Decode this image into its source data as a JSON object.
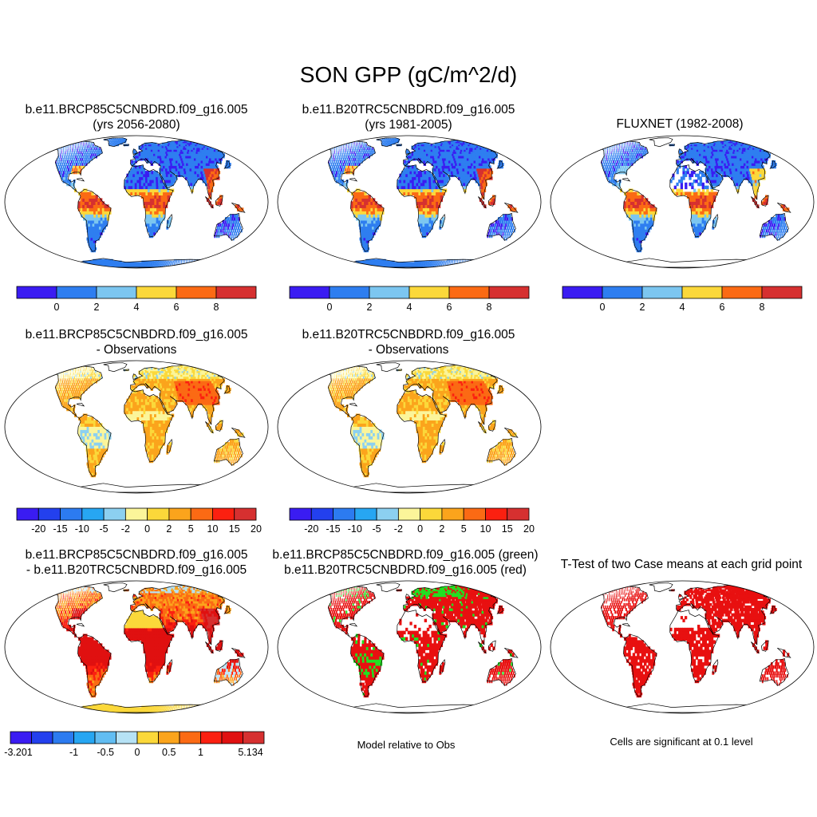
{
  "main_title": "SON GPP (gC/m^2/d)",
  "colors": {
    "abs_palette": [
      "#3a1cf2",
      "#2e7ef0",
      "#7cc6f0",
      "#fbd83a",
      "#fb6a14",
      "#d63030"
    ],
    "diff_palette": [
      "#3a1cf2",
      "#2340ee",
      "#2c7bf0",
      "#27a6f2",
      "#8cd0f0",
      "#fbf59a",
      "#fbd83a",
      "#fba41c",
      "#fb6a14",
      "#fb2010",
      "#d63030"
    ],
    "rel_palette": [
      "#3a1cf2",
      "#2340ee",
      "#2c7bf0",
      "#27a6f2",
      "#62bdf2",
      "#b6e2f5",
      "#fbd83a",
      "#fba41c",
      "#fb6a14",
      "#fb2010",
      "#e01010",
      "#d63030"
    ],
    "green": "#22e022",
    "red": "#e81010",
    "ocean": "#ffffff",
    "outline": "#000000"
  },
  "panels": [
    {
      "id": "p1",
      "title_line1": "b.e11.BRCP85C5CNBDRD.f09_g16.005",
      "title_line2": "(yrs 2056-2080)",
      "kind": "abs_model_future"
    },
    {
      "id": "p2",
      "title_line1": "b.e11.B20TRC5CNBDRD.f09_g16.005",
      "title_line2": "(yrs 1981-2005)",
      "kind": "abs_model_hist"
    },
    {
      "id": "p3",
      "title_line1": "FLUXNET (1982-2008)",
      "title_line2": "",
      "kind": "abs_obs"
    },
    {
      "id": "p4",
      "title_line1": "b.e11.BRCP85C5CNBDRD.f09_g16.005",
      "title_line2": "- Observations",
      "kind": "diff"
    },
    {
      "id": "p5",
      "title_line1": "b.e11.B20TRC5CNBDRD.f09_g16.005",
      "title_line2": "- Observations",
      "kind": "diff"
    },
    {
      "id": "p6",
      "title_line1": "b.e11.BRCP85C5CNBDRD.f09_g16.005",
      "title_line2": "- b.e11.B20TRC5CNBDRD.f09_g16.005",
      "kind": "case_diff"
    },
    {
      "id": "p7",
      "title_line1": "b.e11.BRCP85C5CNBDRD.f09_g16.005 (green)",
      "title_line2": "b.e11.B20TRC5CNBDRD.f09_g16.005 (red)",
      "kind": "relative"
    },
    {
      "id": "p8",
      "title_line1": "T-Test of two Case means at each grid point",
      "title_line2": "",
      "kind": "ttest"
    }
  ],
  "colorbars": {
    "abs": {
      "labels": [
        "0",
        "2",
        "4",
        "6",
        "8"
      ]
    },
    "diff": {
      "labels": [
        "-20",
        "-15",
        "-10",
        "-5",
        "-2",
        "0",
        "2",
        "5",
        "10",
        "15",
        "20"
      ]
    },
    "case_diff": {
      "labels": [
        "-3.201",
        "-1",
        "-0.5",
        "0",
        "0.5",
        "1",
        "5.134"
      ]
    }
  },
  "notes": {
    "relative": "Model relative to Obs",
    "ttest": "Cells are significant at 0.1 level"
  }
}
